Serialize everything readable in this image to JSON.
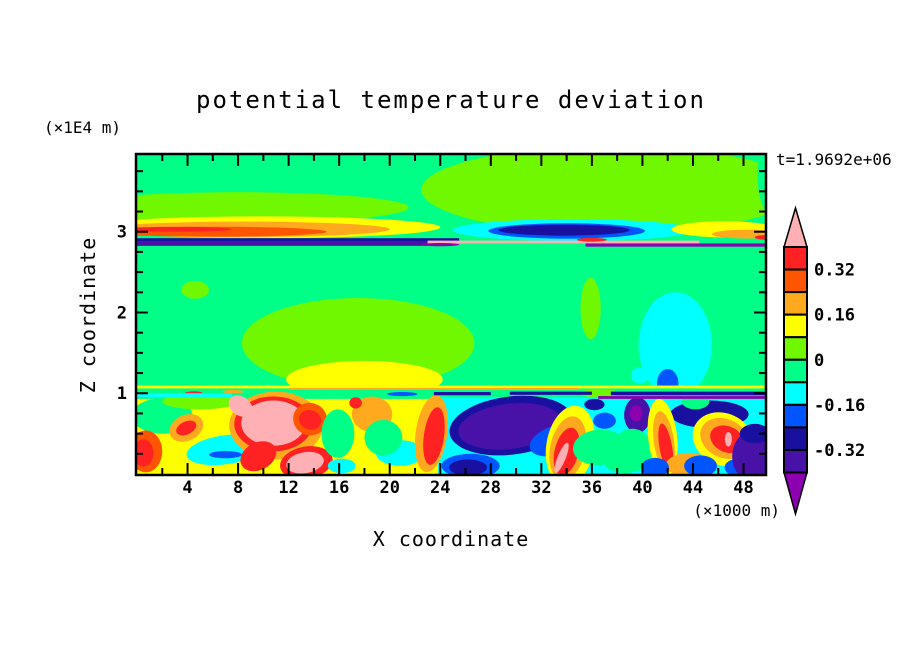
{
  "title": "potential temperature deviation",
  "time_label": "t=1.9692e+06",
  "x_axis": {
    "label": "X coordinate",
    "unit_label": "(×1000 m)",
    "range": [
      0,
      49.7
    ],
    "major_tick_values": [
      4,
      8,
      12,
      16,
      20,
      24,
      28,
      32,
      36,
      40,
      44,
      48
    ],
    "major_tick_labels": [
      "4",
      "8",
      "12",
      "16",
      "20",
      "24",
      "28",
      "32",
      "36",
      "40",
      "44",
      "48"
    ],
    "minor_step": 2
  },
  "y_axis": {
    "label": "Z coordinate",
    "unit_label": "(×1E4 m)",
    "range": [
      0,
      3.95
    ],
    "major_tick_values": [
      1,
      2,
      3
    ],
    "major_tick_labels": [
      "1",
      "2",
      "3"
    ],
    "minor_step": 0.25
  },
  "colorbar": {
    "range": [
      -0.4,
      0.4
    ],
    "level_step": 0.08,
    "segment_colors_top_to_bottom": [
      "red",
      "orangered",
      "orange",
      "yellow",
      "chartreuse",
      "springgreen",
      "cyan",
      "blue",
      "navy",
      "indigo"
    ],
    "arrow_top_color": "pink",
    "arrow_bottom_color": "purple",
    "tick_labels": [
      {
        "label": "0.32",
        "boundary_index": 1
      },
      {
        "label": "0.16",
        "boundary_index": 3
      },
      {
        "label": "0",
        "boundary_index": 5
      },
      {
        "label": "-0.16",
        "boundary_index": 7
      },
      {
        "label": "-0.32",
        "boundary_index": 9
      }
    ]
  },
  "chart_data": {
    "type": "heatmap",
    "title": "potential temperature deviation",
    "xlabel": "X coordinate (×1000 m)",
    "ylabel": "Z coordinate (×1E4 m)",
    "x_range": [
      0,
      49.7
    ],
    "z_range": [
      0,
      3.95
    ],
    "time": "t=1.9692e+06",
    "contour_level_boundaries": [
      -0.4,
      -0.32,
      -0.24,
      -0.16,
      -0.08,
      0,
      0.08,
      0.16,
      0.24,
      0.32,
      0.4
    ],
    "palette": {
      "pink": "#FFB0B4",
      "red": "#FF2222",
      "orangered": "#FF5500",
      "orange": "#FFAA1E",
      "yellow": "#FFFF00",
      "chartreuse": "#70F800",
      "springgreen": "#00FF87",
      "cyan": "#00FFFF",
      "blue": "#0055FF",
      "navy": "#1910A0",
      "indigo": "#4812A8",
      "purple": "#8C00B0"
    },
    "layers": [
      {
        "s": "r",
        "c": "springgreen",
        "x0": 0,
        "x1": 49.7,
        "z0": 0,
        "z1": 3.95
      },
      {
        "s": "e",
        "c": "chartreuse",
        "x": 37.5,
        "z": 3.52,
        "rx": 15,
        "rz": 0.54,
        "rot": 0
      },
      {
        "s": "e",
        "c": "chartreuse",
        "x": 8,
        "z": 3.3,
        "rx": 13.5,
        "rz": 0.19,
        "rot": 0
      },
      {
        "s": "e",
        "c": "springgreen",
        "x": 50.3,
        "z": 3.7,
        "rx": 1.2,
        "rz": 0.5,
        "rot": 0
      },
      {
        "s": "e",
        "c": "yellow",
        "x": 10,
        "z": 3.055,
        "rx": 14,
        "rz": 0.135,
        "rot": 0
      },
      {
        "s": "e",
        "c": "orange",
        "x": 8.5,
        "z": 3.03,
        "rx": 11.5,
        "rz": 0.095,
        "rot": 0
      },
      {
        "s": "e",
        "c": "orangered",
        "x": 6,
        "z": 3.0,
        "rx": 9,
        "rz": 0.062,
        "rot": 0
      },
      {
        "s": "e",
        "c": "red",
        "x": 3,
        "z": 3.03,
        "rx": 4.5,
        "rz": 0.03,
        "rot": 0
      },
      {
        "s": "e",
        "c": "cyan",
        "x": 34.5,
        "z": 3.02,
        "rx": 9.5,
        "rz": 0.135,
        "rot": 0
      },
      {
        "s": "e",
        "c": "blue",
        "x": 34,
        "z": 3.01,
        "rx": 6.2,
        "rz": 0.095,
        "rot": 0
      },
      {
        "s": "e",
        "c": "navy",
        "x": 33.8,
        "z": 3.02,
        "rx": 5.2,
        "rz": 0.068,
        "rot": 0
      },
      {
        "s": "e",
        "c": "yellow",
        "x": 46.5,
        "z": 3.03,
        "rx": 4.2,
        "rz": 0.1,
        "rot": 0
      },
      {
        "s": "e",
        "c": "orange",
        "x": 48.3,
        "z": 2.97,
        "rx": 2.8,
        "rz": 0.055,
        "rot": 0
      },
      {
        "s": "e",
        "c": "red",
        "x": 49.6,
        "z": 2.93,
        "rx": 0.7,
        "rz": 0.028,
        "rot": 0
      },
      {
        "s": "r",
        "c": "navy",
        "x0": 0,
        "x1": 25.5,
        "z0": 2.875,
        "z1": 2.92
      },
      {
        "s": "r",
        "c": "indigo",
        "x0": 0,
        "x1": 23,
        "z0": 2.825,
        "z1": 2.875
      },
      {
        "s": "r",
        "c": "pink",
        "x0": 23,
        "x1": 44.5,
        "z0": 2.855,
        "z1": 2.89
      },
      {
        "s": "e",
        "c": "red",
        "x": 36,
        "z": 2.9,
        "rx": 1.2,
        "rz": 0.022,
        "rot": 0
      },
      {
        "s": "r",
        "c": "purple",
        "x0": 35.5,
        "x1": 49.7,
        "z0": 2.815,
        "z1": 2.855
      },
      {
        "s": "e",
        "c": "purple",
        "x": 24,
        "z": 2.84,
        "rx": 1.5,
        "rz": 0.02,
        "rot": 0
      },
      {
        "s": "e",
        "c": "chartreuse",
        "x": 17.5,
        "z": 1.62,
        "rx": 9.2,
        "rz": 0.56,
        "rot": 0
      },
      {
        "s": "e",
        "c": "chartreuse",
        "x": 4.6,
        "z": 2.28,
        "rx": 1.1,
        "rz": 0.11,
        "rot": 0
      },
      {
        "s": "e",
        "c": "chartreuse",
        "x": 35.9,
        "z": 2.05,
        "rx": 0.8,
        "rz": 0.38,
        "rot": 0
      },
      {
        "s": "e",
        "c": "yellow",
        "x": 18,
        "z": 1.17,
        "rx": 6.2,
        "rz": 0.23,
        "rot": 0
      },
      {
        "s": "e",
        "c": "cyan",
        "x": 42.6,
        "z": 1.6,
        "rx": 2.9,
        "rz": 0.65,
        "rot": 0
      },
      {
        "s": "e",
        "c": "blue",
        "x": 42,
        "z": 1.12,
        "rx": 0.85,
        "rz": 0.18,
        "rot": 0
      },
      {
        "s": "e",
        "c": "cyan",
        "x": 39.8,
        "z": 1.22,
        "rx": 0.7,
        "rz": 0.1,
        "rot": 0
      },
      {
        "s": "r",
        "c": "yellow",
        "x0": 0,
        "x1": 49.7,
        "z0": 0,
        "z1": 1.065
      },
      {
        "s": "r",
        "c": "springgreen",
        "x0": 0,
        "x1": 49.7,
        "z0": 0.93,
        "z1": 1.065
      },
      {
        "s": "r",
        "c": "cyan",
        "x0": 23.8,
        "x1": 49.7,
        "z0": 0,
        "z1": 0.95
      },
      {
        "s": "e",
        "c": "springgreen",
        "x": 2,
        "z": 0.72,
        "rx": 2.4,
        "rz": 0.22,
        "rot": 0
      },
      {
        "s": "e",
        "c": "chartreuse",
        "x": 5,
        "z": 0.9,
        "rx": 3,
        "rz": 0.1,
        "rot": 0
      },
      {
        "s": "e",
        "c": "orange",
        "x": 3.9,
        "z": 0.57,
        "rx": 1.4,
        "rz": 0.16,
        "rot": -25
      },
      {
        "s": "e",
        "c": "red",
        "x": 3.9,
        "z": 0.57,
        "rx": 0.85,
        "rz": 0.08,
        "rot": -25
      },
      {
        "s": "e",
        "c": "orangered",
        "x": 0.7,
        "z": 0.28,
        "rx": 1.3,
        "rz": 0.26,
        "rot": 0
      },
      {
        "s": "e",
        "c": "red",
        "x": 0.5,
        "z": 0.26,
        "rx": 0.8,
        "rz": 0.17,
        "rot": 0
      },
      {
        "s": "e",
        "c": "cyan",
        "x": 7,
        "z": 0.3,
        "rx": 3.1,
        "rz": 0.18,
        "rot": -8
      },
      {
        "s": "e",
        "c": "blue",
        "x": 7,
        "z": 0.24,
        "rx": 1.3,
        "rz": 0.045,
        "rot": 0
      },
      {
        "s": "e",
        "c": "springgreen",
        "x": 9.3,
        "z": 0.62,
        "rx": 1.6,
        "rz": 0.18,
        "rot": 0
      },
      {
        "s": "e",
        "c": "orange",
        "x": 11,
        "z": 0.6,
        "rx": 3.7,
        "rz": 0.42,
        "rot": 0
      },
      {
        "s": "e",
        "c": "red",
        "x": 10.8,
        "z": 0.62,
        "rx": 3.1,
        "rz": 0.34,
        "rot": 0
      },
      {
        "s": "e",
        "c": "pink",
        "x": 10.8,
        "z": 0.63,
        "rx": 2.55,
        "rz": 0.28,
        "rot": 0
      },
      {
        "s": "e",
        "c": "pink",
        "x": 8.2,
        "z": 0.84,
        "rx": 0.75,
        "rz": 0.16,
        "rot": -55
      },
      {
        "s": "e",
        "c": "red",
        "x": 9.6,
        "z": 0.22,
        "rx": 1.5,
        "rz": 0.17,
        "rot": -28
      },
      {
        "s": "e",
        "c": "orangered",
        "x": 13.7,
        "z": 0.68,
        "rx": 1.35,
        "rz": 0.2,
        "rot": 18
      },
      {
        "s": "e",
        "c": "red",
        "x": 13.7,
        "z": 0.67,
        "rx": 0.9,
        "rz": 0.12,
        "rot": 18
      },
      {
        "s": "e",
        "c": "red",
        "x": 13.4,
        "z": 0.14,
        "rx": 2.1,
        "rz": 0.2,
        "rot": -10
      },
      {
        "s": "e",
        "c": "pink",
        "x": 13.3,
        "z": 0.14,
        "rx": 1.5,
        "rz": 0.13,
        "rot": -10
      },
      {
        "s": "e",
        "c": "springgreen",
        "x": 15.9,
        "z": 0.5,
        "rx": 1.3,
        "rz": 0.3,
        "rot": 0
      },
      {
        "s": "e",
        "c": "cyan",
        "x": 16.2,
        "z": 0.1,
        "rx": 1.1,
        "rz": 0.09,
        "rot": 0
      },
      {
        "s": "e",
        "c": "orange",
        "x": 18.6,
        "z": 0.74,
        "rx": 1.6,
        "rz": 0.22,
        "rot": 0
      },
      {
        "s": "e",
        "c": "red",
        "x": 17.3,
        "z": 0.88,
        "rx": 0.5,
        "rz": 0.07,
        "rot": 0
      },
      {
        "s": "e",
        "c": "cyan",
        "x": 20.8,
        "z": 0.26,
        "rx": 1.9,
        "rz": 0.16,
        "rot": 0
      },
      {
        "s": "e",
        "c": "springgreen",
        "x": 19.5,
        "z": 0.45,
        "rx": 1.5,
        "rz": 0.22,
        "rot": 0
      },
      {
        "s": "e",
        "c": "orange",
        "x": 23.3,
        "z": 0.5,
        "rx": 1.25,
        "rz": 0.48,
        "rot": 8
      },
      {
        "s": "e",
        "c": "red",
        "x": 23.5,
        "z": 0.47,
        "rx": 0.8,
        "rz": 0.36,
        "rot": 8
      },
      {
        "s": "e",
        "c": "navy",
        "x": 29.6,
        "z": 0.6,
        "rx": 4.9,
        "rz": 0.36,
        "rot": -7
      },
      {
        "s": "e",
        "c": "indigo",
        "x": 29.5,
        "z": 0.59,
        "rx": 4.1,
        "rz": 0.28,
        "rot": -7
      },
      {
        "s": "e",
        "c": "blue",
        "x": 33.2,
        "z": 0.42,
        "rx": 2.2,
        "rz": 0.18,
        "rot": -18
      },
      {
        "s": "e",
        "c": "yellow",
        "x": 34.3,
        "z": 0.35,
        "rx": 1.9,
        "rz": 0.5,
        "rot": 10
      },
      {
        "s": "e",
        "c": "orange",
        "x": 34.1,
        "z": 0.32,
        "rx": 1.4,
        "rz": 0.4,
        "rot": 12
      },
      {
        "s": "e",
        "c": "red",
        "x": 34,
        "z": 0.28,
        "rx": 0.95,
        "rz": 0.3,
        "rot": 14
      },
      {
        "s": "e",
        "c": "pink",
        "x": 33.6,
        "z": 0.2,
        "rx": 0.32,
        "rz": 0.2,
        "rot": 22
      },
      {
        "s": "e",
        "c": "blue",
        "x": 26.4,
        "z": 0.1,
        "rx": 2.3,
        "rz": 0.15,
        "rot": 0
      },
      {
        "s": "e",
        "c": "navy",
        "x": 26.2,
        "z": 0.08,
        "rx": 1.5,
        "rz": 0.1,
        "rot": 0
      },
      {
        "s": "e",
        "c": "springgreen",
        "x": 36.6,
        "z": 0.33,
        "rx": 2.1,
        "rz": 0.22,
        "rot": -5
      },
      {
        "s": "e",
        "c": "springgreen",
        "x": 38.6,
        "z": 0.14,
        "rx": 1.6,
        "rz": 0.13,
        "rot": 0
      },
      {
        "s": "e",
        "c": "blue",
        "x": 37,
        "z": 0.66,
        "rx": 0.9,
        "rz": 0.1,
        "rot": 0
      },
      {
        "s": "e",
        "c": "navy",
        "x": 36.2,
        "z": 0.86,
        "rx": 0.8,
        "rz": 0.07,
        "rot": 0
      },
      {
        "s": "e",
        "c": "chartreuse",
        "x": 36.6,
        "z": 1.0,
        "rx": 1.6,
        "rz": 0.05,
        "rot": 0
      },
      {
        "s": "e",
        "c": "indigo",
        "x": 39.6,
        "z": 0.73,
        "rx": 1.05,
        "rz": 0.22,
        "rot": 0
      },
      {
        "s": "e",
        "c": "purple",
        "x": 39.5,
        "z": 0.75,
        "rx": 0.5,
        "rz": 0.1,
        "rot": 0
      },
      {
        "s": "e",
        "c": "navy",
        "x": 45.3,
        "z": 0.74,
        "rx": 3.1,
        "rz": 0.17,
        "rot": 0
      },
      {
        "s": "e",
        "c": "springgreen",
        "x": 39.2,
        "z": 0.3,
        "rx": 1.6,
        "rz": 0.26,
        "rot": 0
      },
      {
        "s": "e",
        "c": "springgreen",
        "x": 44.2,
        "z": 0.9,
        "rx": 1.1,
        "rz": 0.1,
        "rot": 0
      },
      {
        "s": "e",
        "c": "yellow",
        "x": 41.6,
        "z": 0.45,
        "rx": 1.15,
        "rz": 0.48,
        "rot": -6
      },
      {
        "s": "e",
        "c": "orange",
        "x": 41.7,
        "z": 0.4,
        "rx": 0.8,
        "rz": 0.38,
        "rot": -8
      },
      {
        "s": "e",
        "c": "red",
        "x": 41.85,
        "z": 0.33,
        "rx": 0.5,
        "rz": 0.3,
        "rot": -10
      },
      {
        "s": "e",
        "c": "orange",
        "x": 43.4,
        "z": 0.13,
        "rx": 1.6,
        "rz": 0.13,
        "rot": -8
      },
      {
        "s": "e",
        "c": "yellow",
        "x": 46.4,
        "z": 0.43,
        "rx": 2.5,
        "rz": 0.32,
        "rot": 25
      },
      {
        "s": "e",
        "c": "orange",
        "x": 46.5,
        "z": 0.44,
        "rx": 2.0,
        "rz": 0.24,
        "rot": 25
      },
      {
        "s": "e",
        "c": "red",
        "x": 46.7,
        "z": 0.43,
        "rx": 1.4,
        "rz": 0.16,
        "rot": 25
      },
      {
        "s": "e",
        "c": "pink",
        "x": 46.8,
        "z": 0.43,
        "rx": 0.28,
        "rz": 0.09,
        "rot": 0
      },
      {
        "s": "e",
        "c": "blue",
        "x": 41,
        "z": 0.08,
        "rx": 1.1,
        "rz": 0.12,
        "rot": 0
      },
      {
        "s": "e",
        "c": "blue",
        "x": 44.6,
        "z": 0.1,
        "rx": 1.3,
        "rz": 0.13,
        "rot": 0
      },
      {
        "s": "e",
        "c": "blue",
        "x": 47.6,
        "z": 0.08,
        "rx": 1.1,
        "rz": 0.11,
        "rot": 0
      },
      {
        "s": "e",
        "c": "indigo",
        "x": 48.8,
        "z": 0.22,
        "rx": 1.7,
        "rz": 0.32,
        "rot": 0
      },
      {
        "s": "e",
        "c": "navy",
        "x": 48.9,
        "z": 0.5,
        "rx": 1.2,
        "rz": 0.12,
        "rot": 0
      },
      {
        "s": "r",
        "c": "yellow",
        "x0": 0,
        "x1": 49.7,
        "z0": 1.06,
        "z1": 1.095
      },
      {
        "s": "r",
        "c": "orange",
        "x0": 12,
        "x1": 35,
        "z0": 1.04,
        "z1": 1.065
      },
      {
        "s": "e",
        "c": "red",
        "x": 4.5,
        "z": 1.0,
        "rx": 0.7,
        "rz": 0.025,
        "rot": 0
      },
      {
        "s": "r",
        "c": "cyan",
        "x0": 0,
        "x1": 7.5,
        "z0": 0.95,
        "z1": 1.0
      },
      {
        "s": "r",
        "c": "navy",
        "x0": 23.5,
        "x1": 28,
        "z0": 0.975,
        "z1": 1.015
      },
      {
        "s": "r",
        "c": "navy",
        "x0": 29.5,
        "x1": 36,
        "z0": 0.98,
        "z1": 1.02
      },
      {
        "s": "r",
        "c": "navy",
        "x0": 37.5,
        "x1": 49.7,
        "z0": 0.975,
        "z1": 1.02
      },
      {
        "s": "r",
        "c": "purple",
        "x0": 36.5,
        "x1": 49.7,
        "z0": 0.93,
        "z1": 0.965
      },
      {
        "s": "e",
        "c": "blue",
        "x": 21,
        "z": 0.99,
        "rx": 1.2,
        "rz": 0.025,
        "rot": 0
      },
      {
        "s": "e",
        "c": "orange",
        "x": 7.6,
        "z": 1.02,
        "rx": 0.9,
        "rz": 0.02,
        "rot": 0
      },
      {
        "s": "e",
        "c": "navy",
        "x": 30.5,
        "z": 0.93,
        "rx": 2,
        "rz": 0.02,
        "rot": 0
      }
    ]
  }
}
